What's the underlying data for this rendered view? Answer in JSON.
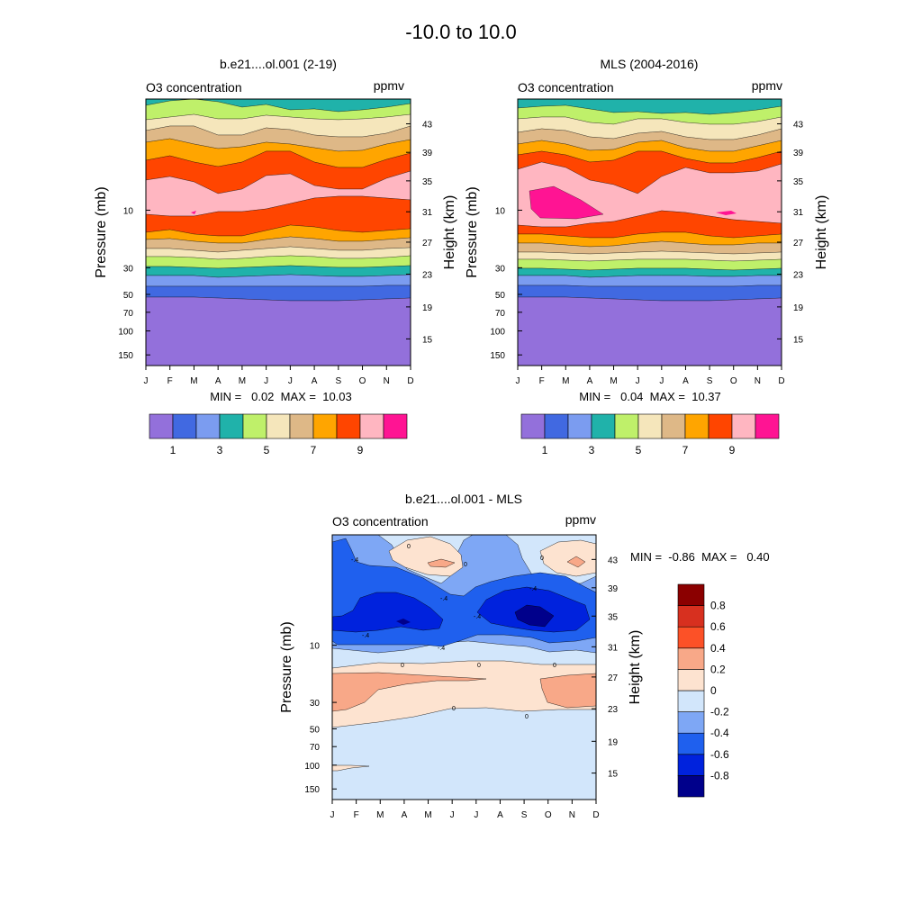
{
  "figure_title": "-10.0 to  10.0",
  "months": [
    "J",
    "F",
    "M",
    "A",
    "M",
    "J",
    "J",
    "A",
    "S",
    "O",
    "N",
    "D"
  ],
  "pressure_ticks": [
    "10",
    "30",
    "50",
    "70",
    "100",
    "150"
  ],
  "height_ticks": [
    "43",
    "39",
    "35",
    "31",
    "27",
    "23",
    "19",
    "15"
  ],
  "label_left": "Pressure (mb)",
  "label_right": "Height (km)",
  "colors": {
    "levels": [
      "#9370db",
      "#4169e1",
      "#7b9cf0",
      "#20b2aa",
      "#bff06a",
      "#f5e6bb",
      "#deb887",
      "#ffa500",
      "#ff4500",
      "#ffb6c1",
      "#ff1493"
    ],
    "diff": [
      "#00008b",
      "#0022dd",
      "#1f60ee",
      "#7ea7f5",
      "#d2e6fb",
      "#fde3d0",
      "#f8a888",
      "#fc5127",
      "#d7301f",
      "#8b0000"
    ]
  },
  "chart_data": [
    {
      "type": "contour",
      "title": "b.e21....ol.001 (2-19)",
      "subtitle_left": "O3 concentration",
      "subtitle_right": "ppmv",
      "xlabel": "",
      "ylabel": "Pressure (mb)",
      "ylabel_right": "Height (km)",
      "stats": "MIN =   0.02  MAX =  10.03",
      "min": 0.02,
      "max": 10.03,
      "colorbar_labels": [
        "1",
        "3",
        "5",
        "7",
        "9"
      ],
      "bands_top_to_bottom": [
        "#20b2aa",
        "#bff06a",
        "#f5e6bb",
        "#deb887",
        "#ffa500",
        "#ff4500",
        "#ffb6c1",
        "#ff4500",
        "#ffa500",
        "#deb887",
        "#f5e6bb",
        "#bff06a",
        "#20b2aa",
        "#7b9cf0",
        "#4169e1",
        "#9370db"
      ],
      "boundaries": [
        [
          117,
          112,
          110,
          113,
          119,
          116,
          122,
          121,
          124,
          122,
          119,
          115
        ],
        [
          133,
          130,
          127,
          132,
          132,
          128,
          130,
          132,
          133,
          132,
          130,
          127
        ],
        [
          145,
          140,
          140,
          150,
          150,
          142,
          144,
          150,
          152,
          152,
          148,
          140
        ],
        [
          158,
          154,
          160,
          165,
          163,
          158,
          160,
          164,
          168,
          167,
          160,
          155
        ],
        [
          178,
          173,
          180,
          185,
          180,
          168,
          168,
          180,
          186,
          186,
          177,
          170
        ],
        [
          200,
          196,
          202,
          215,
          210,
          195,
          193,
          206,
          210,
          210,
          198,
          190
        ],
        [
          238,
          240,
          240,
          235,
          235,
          232,
          226,
          220,
          218,
          218,
          220,
          222
        ],
        [
          258,
          255,
          260,
          262,
          262,
          256,
          250,
          252,
          256,
          258,
          256,
          254
        ],
        [
          266,
          265,
          268,
          270,
          270,
          266,
          263,
          265,
          268,
          268,
          266,
          264
        ],
        [
          276,
          276,
          278,
          280,
          278,
          276,
          274,
          276,
          278,
          278,
          276,
          275
        ],
        [
          285,
          285,
          286,
          288,
          287,
          285,
          284,
          285,
          287,
          287,
          286,
          284
        ],
        [
          296,
          296,
          297,
          298,
          297,
          296,
          295,
          296,
          297,
          297,
          296,
          295
        ],
        [
          306,
          306,
          306,
          308,
          307,
          306,
          305,
          306,
          307,
          307,
          306,
          305
        ],
        [
          318,
          318,
          318,
          318,
          318,
          318,
          318,
          318,
          318,
          318,
          317,
          317
        ],
        [
          330,
          330,
          330,
          331,
          332,
          333,
          334,
          334,
          334,
          333,
          332,
          331
        ]
      ]
    },
    {
      "type": "contour",
      "title": "MLS (2004-2016)",
      "subtitle_left": "O3 concentration",
      "subtitle_right": "ppmv",
      "xlabel": "",
      "ylabel": "Pressure (mb)",
      "ylabel_right": "Height (km)",
      "stats": "MIN =   0.04  MAX =  10.37",
      "min": 0.04,
      "max": 10.37,
      "colorbar_labels": [
        "1",
        "3",
        "5",
        "7",
        "9"
      ],
      "bands_top_to_bottom": [
        "#20b2aa",
        "#bff06a",
        "#f5e6bb",
        "#deb887",
        "#ffa500",
        "#ff4500",
        "#ffb6c1",
        "#ff4500",
        "#ffa500",
        "#deb887",
        "#f5e6bb",
        "#bff06a",
        "#20b2aa",
        "#7b9cf0",
        "#4169e1",
        "#9370db"
      ],
      "boundaries": [
        [
          120,
          118,
          117,
          121,
          125,
          124,
          126,
          125,
          127,
          125,
          122,
          118
        ],
        [
          132,
          130,
          130,
          136,
          138,
          132,
          132,
          136,
          138,
          138,
          135,
          130
        ],
        [
          147,
          143,
          145,
          152,
          154,
          148,
          146,
          152,
          155,
          155,
          150,
          143
        ],
        [
          160,
          156,
          160,
          167,
          166,
          158,
          156,
          164,
          168,
          168,
          162,
          156
        ],
        [
          172,
          168,
          172,
          180,
          178,
          168,
          168,
          176,
          181,
          181,
          175,
          168
        ],
        [
          188,
          180,
          186,
          200,
          205,
          215,
          196,
          186,
          192,
          192,
          190,
          182
        ],
        [
          250,
          252,
          252,
          248,
          246,
          240,
          234,
          236,
          240,
          244,
          246,
          248
        ],
        [
          260,
          260,
          262,
          264,
          264,
          260,
          258,
          258,
          262,
          264,
          262,
          260
        ],
        [
          270,
          270,
          272,
          274,
          273,
          270,
          268,
          270,
          272,
          272,
          270,
          270
        ],
        [
          280,
          280,
          281,
          282,
          281,
          280,
          279,
          280,
          281,
          282,
          281,
          280
        ],
        [
          288,
          288,
          289,
          290,
          289,
          288,
          288,
          288,
          289,
          290,
          289,
          288
        ],
        [
          298,
          298,
          299,
          300,
          299,
          298,
          298,
          298,
          299,
          300,
          299,
          298
        ],
        [
          306,
          306,
          306,
          308,
          307,
          306,
          306,
          306,
          307,
          307,
          306,
          306
        ],
        [
          317,
          317,
          317,
          318,
          318,
          318,
          318,
          318,
          318,
          318,
          317,
          317
        ],
        [
          330,
          330,
          330,
          331,
          332,
          333,
          334,
          334,
          334,
          333,
          332,
          331
        ]
      ]
    },
    {
      "type": "contour",
      "title": "b.e21....ol.001 - MLS",
      "subtitle_left": "O3 concentration",
      "subtitle_right": "ppmv",
      "xlabel": "",
      "ylabel": "Pressure (mb)",
      "ylabel_right": "Height (km)",
      "stats": "MIN =  -0.86  MAX =   0.40",
      "min": -0.86,
      "max": 0.4,
      "colorbar_labels": [
        "0.8",
        "0.6",
        "0.4",
        "0.2",
        "0",
        "-0.2",
        "-0.4",
        "-0.6",
        "-0.8"
      ],
      "contour_labels": [
        "0",
        "0",
        "0",
        "0",
        "0",
        "0",
        "0",
        "0",
        "-.4",
        "-.4",
        "-.4",
        "-.4",
        "-.4",
        "-.4"
      ]
    }
  ]
}
